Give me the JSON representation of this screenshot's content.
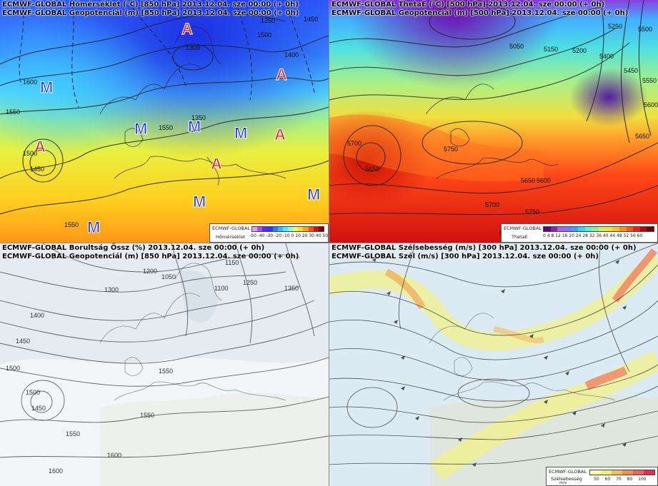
{
  "panels": [
    {
      "id": "temperature-850",
      "header_line1": "ECMWF-GLOBAL Hőmérséklet (°C) [850 hPa] 2013.12.04. sze 00:00 (+ 0h)",
      "header_line2": "ECMWF-GLOBAL Geopotenciál (m) [850 hPa] 2013.12.04. sze 00:00 (+ 0h)",
      "pressure_markers": [
        "A",
        "A",
        "A",
        "A",
        "A",
        "M",
        "M",
        "M",
        "M",
        "M",
        "M",
        "M"
      ],
      "contour_labels": [
        "1600",
        "1550",
        "1500",
        "1450",
        "1400",
        "1350",
        "1300",
        "1250",
        "1550",
        "1550",
        "1500",
        "1450"
      ],
      "legend": {
        "model": "ECMWF-GLOBAL",
        "variable": "Hőmérséklet",
        "ticks": "-50 -40 -30 -20 -10 0 10 20 30 40 50",
        "colors": [
          "#e6a0ff",
          "#a050ff",
          "#5a28ff",
          "#2838ff",
          "#2c7cff",
          "#38b8ff",
          "#58e8ff",
          "#90ffd0",
          "#e0ff70",
          "#ffe020",
          "#ffa010",
          "#ff5000",
          "#d41010",
          "#7a0000"
        ]
      }
    },
    {
      "id": "thetae-500",
      "header_line1": "ECMWF-GLOBAL ThetaE (°C) [500 hPa] 2013.12.04. sze 00:00 (+ 0h)",
      "header_line2": "ECMWF-GLOBAL Geopotenciál (m) [500 hPa] 2013.12.04. sze 00:00 (+ 0h)",
      "contour_labels": [
        "5700",
        "5650",
        "5750",
        "5700",
        "5650",
        "5600",
        "5750",
        "5850",
        "5050",
        "5150",
        "5200",
        "5250",
        "5450",
        "5500",
        "5550",
        "5600",
        "5400",
        "5650"
      ],
      "legend": {
        "model": "ECMWF-GLOBAL",
        "variable": "ThetaE",
        "ticks": "0 4 8 12 16 20 24 28 32 36 40 44 48 52 56 60",
        "colors": [
          "#5a0080",
          "#8a20c0",
          "#b060e8",
          "#7a7aff",
          "#3aa0ff",
          "#30d8ff",
          "#60f0d0",
          "#90f090",
          "#d0f060",
          "#f0e040",
          "#ffc030",
          "#ff9020",
          "#ff5818",
          "#e82010",
          "#b00808",
          "#700000"
        ]
      }
    },
    {
      "id": "cloud-cover",
      "header_line1": "ECMWF-GLOBAL Borultság Össz (%) 2013.12.04. sze 00:00 (+ 0h)",
      "header_line2": "ECMWF-GLOBAL Geopotenciál (m) [850 hPa] 2013.12.04. sze 00:00 (+ 0h)",
      "contour_labels": [
        "1200",
        "1250",
        "1100",
        "1150",
        "1050",
        "1300",
        "1350",
        "1400",
        "1450",
        "1500",
        "1550",
        "1600",
        "1550",
        "1500",
        "1450",
        "1550",
        "1600"
      ]
    },
    {
      "id": "wind-300",
      "header_line1": "ECMWF-GLOBAL Szélsebesség (m/s) [300 hPa] 2013.12.04. sze 00:00 (+ 0h)",
      "header_line2": "ECMWF-GLOBAL Szél (m/s) [300 hPa] 2013.12.04. sze 00:00 (+ 0h)",
      "legend": {
        "model": "ECMWF-GLOBAL",
        "variable": "Szélsebesség",
        "unit": "m/s",
        "ticks": "50 60 70 80 100",
        "colors": [
          "#f8f8b0",
          "#f0f070",
          "#f0c060",
          "#f09050",
          "#f06060",
          "#e03050"
        ]
      }
    }
  ]
}
